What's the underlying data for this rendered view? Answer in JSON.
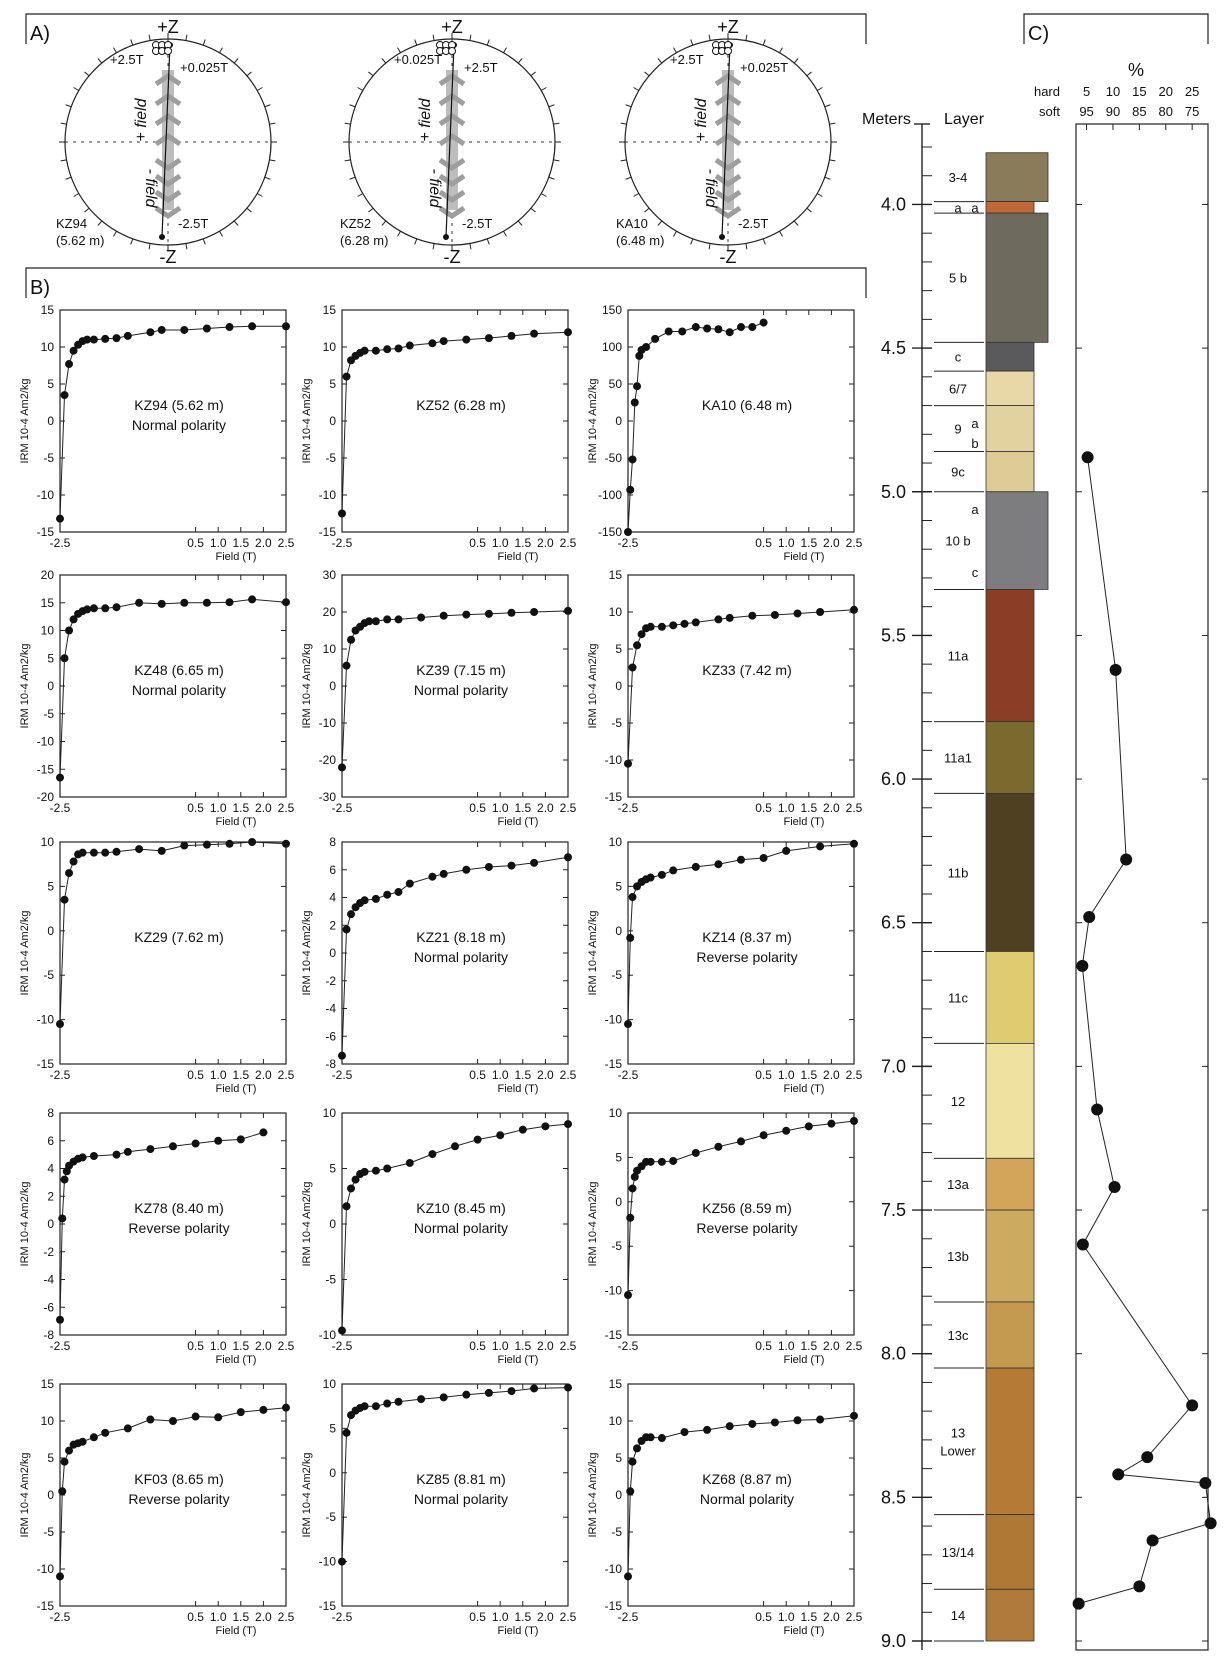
{
  "panels": {
    "a": "A)",
    "b": "B)",
    "c": "C)"
  },
  "stereonets": [
    {
      "id": "KZ94",
      "label": "KZ94",
      "depth": "(5.62 m)",
      "top": "+Z",
      "bottom": "-Z",
      "annotations": [
        "+2.5T",
        "+0.025T",
        "-2.5T"
      ],
      "field_plus": "+ field",
      "field_minus": "- field"
    },
    {
      "id": "KZ52",
      "label": "KZ52",
      "depth": "(6.28 m)",
      "top": "+Z",
      "bottom": "-Z",
      "annotations": [
        "+0.025T",
        "+2.5T",
        "-2.5T"
      ],
      "field_plus": "+ field",
      "field_minus": "- field"
    },
    {
      "id": "KA10",
      "label": "KA10",
      "depth": "(6.48 m)",
      "top": "+Z",
      "bottom": "-Z",
      "annotations": [
        "+2.5T",
        "+0.025T",
        "-2.5T"
      ],
      "field_plus": "+ field",
      "field_minus": "- field"
    }
  ],
  "irm_axis": {
    "xlabel": "Field (T)",
    "ylabel": "IRM 10-4 Am2/kg",
    "xticks": [
      "-2.5",
      "0.5",
      "1.0",
      "1.5",
      "2.0",
      "2.5"
    ]
  },
  "chart_data": [
    {
      "type": "line",
      "title": "KZ94 (5.62 m)",
      "subtitle": "Normal polarity",
      "ylim": [
        -15,
        15
      ],
      "yticks": [
        -15,
        -10,
        -5,
        0,
        5,
        10,
        15
      ],
      "x": [
        -2.5,
        -2.4,
        -2.3,
        -2.2,
        -2.1,
        -2.0,
        -1.9,
        -1.75,
        -1.5,
        -1.25,
        -1.0,
        -0.5,
        -0.25,
        0.25,
        0.75,
        1.25,
        1.75,
        2.5
      ],
      "values": [
        -13.2,
        3.5,
        7.7,
        9.5,
        10.3,
        10.8,
        11,
        11,
        11.1,
        11.2,
        11.5,
        12,
        12.3,
        12.3,
        12.5,
        12.7,
        12.8,
        12.8
      ]
    },
    {
      "type": "line",
      "title": "KZ52 (6.28 m)",
      "subtitle": "",
      "ylim": [
        -15,
        15
      ],
      "yticks": [
        -15,
        -10,
        -5,
        0,
        5,
        10,
        15
      ],
      "x": [
        -2.5,
        -2.4,
        -2.3,
        -2.2,
        -2.1,
        -2.0,
        -1.75,
        -1.5,
        -1.25,
        -1.0,
        -0.5,
        -0.25,
        0.25,
        0.75,
        1.25,
        1.75,
        2.5
      ],
      "values": [
        -12.5,
        6,
        8.2,
        8.8,
        9.2,
        9.5,
        9.5,
        9.7,
        9.8,
        10.2,
        10.5,
        10.8,
        11,
        11.2,
        11.5,
        11.8,
        12
      ]
    },
    {
      "type": "line",
      "title": "KA10 (6.48 m)",
      "subtitle": "",
      "ylim": [
        -150,
        150
      ],
      "yticks": [
        -150,
        -100,
        -50,
        0,
        50,
        100,
        150
      ],
      "x": [
        -2.5,
        -2.45,
        -2.4,
        -2.35,
        -2.3,
        -2.25,
        -2.2,
        -2.1,
        -1.9,
        -1.6,
        -1.3,
        -1.0,
        -0.75,
        -0.5,
        -0.25,
        0.0,
        0.25,
        0.5
      ],
      "values": [
        -150,
        -93,
        -52,
        25,
        47,
        88,
        96,
        100,
        111,
        121,
        121,
        127,
        125,
        124,
        120,
        127,
        127,
        133
      ]
    },
    {
      "type": "line",
      "title": "KZ48 (6.65 m)",
      "subtitle": "Normal polarity",
      "ylim": [
        -20,
        20
      ],
      "yticks": [
        -20,
        -15,
        -10,
        -5,
        0,
        5,
        10,
        15,
        20
      ],
      "x": [
        -2.5,
        -2.4,
        -2.3,
        -2.2,
        -2.1,
        -2.0,
        -1.9,
        -1.75,
        -1.5,
        -1.25,
        -0.75,
        -0.25,
        0.25,
        0.75,
        1.25,
        1.75,
        2.5
      ],
      "values": [
        -16.5,
        5,
        10,
        12,
        13,
        13.5,
        13.8,
        14,
        14,
        14.2,
        15,
        14.8,
        15,
        15,
        15.1,
        15.6,
        15.1
      ]
    },
    {
      "type": "line",
      "title": "KZ39 (7.15 m)",
      "subtitle": "Normal polarity",
      "ylim": [
        -30,
        30
      ],
      "yticks": [
        -30,
        -20,
        -10,
        0,
        10,
        20,
        30
      ],
      "x": [
        -2.5,
        -2.4,
        -2.3,
        -2.2,
        -2.1,
        -2.0,
        -1.9,
        -1.75,
        -1.5,
        -1.25,
        -0.75,
        -0.25,
        0.25,
        0.75,
        1.25,
        1.75,
        2.5
      ],
      "values": [
        -22,
        5.5,
        12.5,
        15,
        16,
        17,
        17.5,
        17.5,
        18,
        18,
        18.5,
        19,
        19.3,
        19.5,
        19.8,
        20,
        20.3
      ]
    },
    {
      "type": "line",
      "title": "KZ33 (7.42 m)",
      "subtitle": "",
      "ylim": [
        -15,
        15
      ],
      "yticks": [
        -15,
        -10,
        -5,
        0,
        5,
        10,
        15
      ],
      "x": [
        -2.5,
        -2.4,
        -2.3,
        -2.2,
        -2.1,
        -2.0,
        -1.75,
        -1.5,
        -1.25,
        -1.0,
        -0.5,
        -0.25,
        0.25,
        0.75,
        1.25,
        1.75,
        2.5
      ],
      "values": [
        -10.5,
        2.5,
        5.5,
        7,
        7.8,
        8,
        8,
        8.2,
        8.4,
        8.6,
        9,
        9.2,
        9.5,
        9.6,
        9.8,
        10,
        10.3
      ]
    },
    {
      "type": "line",
      "title": "KZ29 (7.62 m)",
      "subtitle": "",
      "ylim": [
        -15,
        10
      ],
      "yticks": [
        -15,
        -10,
        -5,
        0,
        5,
        10
      ],
      "x": [
        -2.5,
        -2.4,
        -2.3,
        -2.2,
        -2.1,
        -2.0,
        -1.75,
        -1.5,
        -1.25,
        -0.75,
        -0.25,
        0.25,
        0.75,
        1.25,
        1.75,
        2.5
      ],
      "values": [
        -10.5,
        3.5,
        6.5,
        7.8,
        8.6,
        8.8,
        8.8,
        8.8,
        8.9,
        9.2,
        9.0,
        9.6,
        9.7,
        9.8,
        10,
        9.8
      ]
    },
    {
      "type": "line",
      "title": "KZ21 (8.18 m)",
      "subtitle": "Normal polarity",
      "ylim": [
        -8,
        8
      ],
      "yticks": [
        -8,
        -6,
        -4,
        -2,
        0,
        2,
        4,
        6,
        8
      ],
      "x": [
        -2.5,
        -2.4,
        -2.3,
        -2.2,
        -2.1,
        -2.0,
        -1.75,
        -1.5,
        -1.25,
        -1.0,
        -0.5,
        -0.25,
        0.25,
        0.75,
        1.25,
        1.75,
        2.5
      ],
      "values": [
        -7.4,
        1.7,
        2.8,
        3.3,
        3.6,
        3.8,
        3.9,
        4.2,
        4.4,
        5.0,
        5.5,
        5.7,
        6.0,
        6.2,
        6.3,
        6.5,
        6.9
      ]
    },
    {
      "type": "line",
      "title": "KZ14 (8.37 m)",
      "subtitle": "Reverse polarity",
      "ylim": [
        -15,
        10
      ],
      "yticks": [
        -15,
        -10,
        -5,
        0,
        5,
        10
      ],
      "x": [
        -2.5,
        -2.45,
        -2.4,
        -2.3,
        -2.2,
        -2.1,
        -2.0,
        -1.75,
        -1.5,
        -1.0,
        -0.5,
        0.0,
        0.5,
        1.0,
        1.75,
        2.5
      ],
      "values": [
        -10.5,
        -0.8,
        3.8,
        5,
        5.5,
        5.8,
        6,
        6.3,
        6.8,
        7.2,
        7.5,
        8,
        8.2,
        9,
        9.5,
        9.8
      ]
    },
    {
      "type": "line",
      "title": "KZ78 (8.40 m)",
      "subtitle": "Reverse polarity",
      "ylim": [
        -8,
        8
      ],
      "yticks": [
        -8,
        -6,
        -4,
        -2,
        0,
        2,
        4,
        6,
        8
      ],
      "x": [
        -2.5,
        -2.45,
        -2.4,
        -2.35,
        -2.3,
        -2.2,
        -2.1,
        -2.0,
        -1.75,
        -1.25,
        -1.0,
        -0.5,
        0.0,
        0.5,
        1.0,
        1.5,
        2.0
      ],
      "values": [
        -6.9,
        0.4,
        3.2,
        3.8,
        4.2,
        4.5,
        4.7,
        4.8,
        4.9,
        5.0,
        5.2,
        5.4,
        5.6,
        5.8,
        6.0,
        6.1,
        6.6
      ]
    },
    {
      "type": "line",
      "title": "KZ10 (8.45 m)",
      "subtitle": "Normal polarity",
      "ylim": [
        -10,
        10
      ],
      "yticks": [
        -10,
        -5,
        0,
        5,
        10
      ],
      "x": [
        -2.5,
        -2.4,
        -2.3,
        -2.2,
        -2.1,
        -2.0,
        -1.75,
        -1.5,
        -1.0,
        -0.5,
        0.0,
        0.5,
        1.0,
        1.5,
        2.0,
        2.5
      ],
      "values": [
        -9.6,
        1.6,
        3.2,
        4,
        4.5,
        4.7,
        4.8,
        5,
        5.5,
        6.3,
        7,
        7.6,
        8,
        8.5,
        8.8,
        9
      ]
    },
    {
      "type": "line",
      "title": "KZ56 (8.59 m)",
      "subtitle": "Reverse polarity",
      "ylim": [
        -15,
        10
      ],
      "yticks": [
        -15,
        -10,
        -5,
        0,
        5,
        10
      ],
      "x": [
        -2.5,
        -2.45,
        -2.4,
        -2.35,
        -2.3,
        -2.2,
        -2.1,
        -2.0,
        -1.75,
        -1.5,
        -1.0,
        -0.5,
        0.0,
        0.5,
        1.0,
        1.5,
        2.0,
        2.5
      ],
      "values": [
        -10.5,
        -1.8,
        1.5,
        2.8,
        3.5,
        4,
        4.5,
        4.5,
        4.5,
        4.6,
        5.5,
        6.2,
        6.8,
        7.5,
        8,
        8.5,
        8.8,
        9.1
      ]
    },
    {
      "type": "line",
      "title": "KF03 (8.65 m)",
      "subtitle": "Reverse polarity",
      "ylim": [
        -15,
        15
      ],
      "yticks": [
        -15,
        -10,
        -5,
        0,
        5,
        10,
        15
      ],
      "x": [
        -2.5,
        -2.45,
        -2.4,
        -2.3,
        -2.2,
        -2.1,
        -2.0,
        -1.75,
        -1.5,
        -1.0,
        -0.5,
        0.0,
        0.5,
        1.0,
        1.5,
        2.0,
        2.5
      ],
      "values": [
        -11,
        0.5,
        4.5,
        6,
        6.8,
        7,
        7.2,
        7.8,
        8.4,
        9,
        10.2,
        10.0,
        10.6,
        10.5,
        11.2,
        11.5,
        11.8
      ]
    },
    {
      "type": "line",
      "title": "KZ85 (8.81 m)",
      "subtitle": "Normal polarity",
      "ylim": [
        -15,
        10
      ],
      "yticks": [
        -15,
        -10,
        -5,
        0,
        5,
        10
      ],
      "x": [
        -2.5,
        -2.4,
        -2.3,
        -2.2,
        -2.1,
        -2.0,
        -1.75,
        -1.5,
        -1.25,
        -0.75,
        -0.25,
        0.25,
        0.75,
        1.25,
        1.75,
        2.5
      ],
      "values": [
        -10,
        4.5,
        6.5,
        7,
        7.3,
        7.5,
        7.5,
        7.8,
        8.0,
        8.3,
        8.5,
        8.8,
        9.0,
        9.2,
        9.5,
        9.6
      ]
    },
    {
      "type": "line",
      "title": "KZ68 (8.87 m)",
      "subtitle": "Normal polarity",
      "ylim": [
        -15,
        15
      ],
      "yticks": [
        -15,
        -10,
        -5,
        0,
        5,
        10,
        15
      ],
      "x": [
        -2.5,
        -2.45,
        -2.4,
        -2.3,
        -2.2,
        -2.1,
        -2.0,
        -1.75,
        -1.25,
        -0.75,
        -0.25,
        0.25,
        0.75,
        1.25,
        1.75,
        2.5
      ],
      "values": [
        -11,
        0.5,
        4.5,
        6.3,
        7.3,
        7.8,
        7.8,
        7.7,
        8.5,
        8.8,
        9.3,
        9.6,
        9.8,
        10.1,
        10.2,
        10.7
      ]
    },
    {
      "type": "line",
      "title": "%",
      "subtitle": "",
      "axis_rows": [
        {
          "label": "hard",
          "ticks": [
            "5",
            "10",
            "15",
            "20",
            "25"
          ]
        },
        {
          "label": "soft",
          "ticks": [
            "95",
            "90",
            "85",
            "80",
            "75"
          ]
        }
      ],
      "xlim": [
        3,
        28
      ],
      "depth_m": [
        4.88,
        5.62,
        6.28,
        6.48,
        6.65,
        7.15,
        7.42,
        7.62,
        8.18,
        8.36,
        8.42,
        8.45,
        8.59,
        8.65,
        8.81,
        8.87
      ],
      "values": [
        5.2,
        10.5,
        12.5,
        5.5,
        4.2,
        7.0,
        10.3,
        4.3,
        25.0,
        16.5,
        11.0,
        27.5,
        28.5,
        17.5,
        15.0,
        3.5
      ]
    }
  ],
  "stratigraphy": {
    "meters_label": "Meters",
    "layer_label": "Layer",
    "depth_ticks": [
      "4.0",
      "4.5",
      "5.0",
      "5.5",
      "6.0",
      "6.5",
      "7.0",
      "7.5",
      "8.0",
      "8.5",
      "9.0"
    ],
    "layers": [
      {
        "label": "3-4",
        "top": 3.82,
        "bottom": 3.99,
        "color": "#8a7b5a"
      },
      {
        "label": "a",
        "top": 3.99,
        "bottom": 4.03,
        "color": "#c0683a"
      },
      {
        "label": "5  b",
        "top": 4.03,
        "bottom": 4.48,
        "color": "#6e6a5e"
      },
      {
        "label": "c",
        "top": 4.48,
        "bottom": 4.58,
        "color": "#5a5a5c"
      },
      {
        "label": "6/7",
        "top": 4.58,
        "bottom": 4.7,
        "color": "#e8d8a8"
      },
      {
        "label": "9",
        "top": 4.7,
        "bottom": 4.86,
        "color": "#e2d2a0"
      },
      {
        "label": "9c",
        "top": 4.86,
        "bottom": 5.0,
        "color": "#ddcc95"
      },
      {
        "label": "10 b",
        "top": 5.0,
        "bottom": 5.34,
        "color": "#7d7d80"
      },
      {
        "label": "11a",
        "top": 5.34,
        "bottom": 5.8,
        "color": "#8b3d26"
      },
      {
        "label": "11a1",
        "top": 5.8,
        "bottom": 6.05,
        "color": "#7a6a2e"
      },
      {
        "label": "11b",
        "top": 6.05,
        "bottom": 6.6,
        "color": "#4e4020"
      },
      {
        "label": "11c",
        "top": 6.6,
        "bottom": 6.92,
        "color": "#e0cc70"
      },
      {
        "label": "12",
        "top": 6.92,
        "bottom": 7.32,
        "color": "#efe2a0"
      },
      {
        "label": "13a",
        "top": 7.32,
        "bottom": 7.5,
        "color": "#d2a55a"
      },
      {
        "label": "13b",
        "top": 7.5,
        "bottom": 7.82,
        "color": "#ccaa60"
      },
      {
        "label": "13c",
        "top": 7.82,
        "bottom": 8.05,
        "color": "#c49a50"
      },
      {
        "label": "13\nLower",
        "top": 8.05,
        "bottom": 8.56,
        "color": "#b57a35"
      },
      {
        "label": "13/14",
        "top": 8.56,
        "bottom": 8.82,
        "color": "#b07835"
      },
      {
        "label": "14",
        "top": 8.82,
        "bottom": 9.0,
        "color": "#b07a3a"
      }
    ],
    "sub_labels": [
      {
        "text": "a",
        "depth": 4.01
      },
      {
        "text": "a",
        "depth": 4.76
      },
      {
        "text": "b",
        "depth": 4.83
      },
      {
        "text": "a",
        "depth": 5.06
      },
      {
        "text": "c",
        "depth": 5.28
      }
    ]
  }
}
